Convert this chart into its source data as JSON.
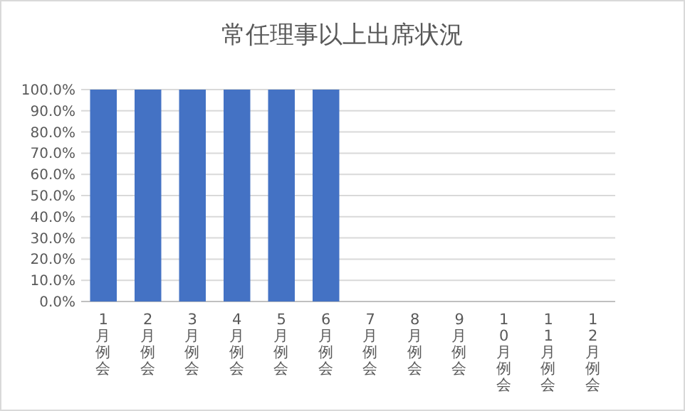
{
  "chart_data": {
    "type": "bar",
    "title": "常任理事以上出席状況",
    "categories": [
      "1月例会",
      "2月例会",
      "3月例会",
      "4月例会",
      "5月例会",
      "6月例会",
      "7月例会",
      "8月例会",
      "9月例会",
      "10月例会",
      "11月例会",
      "12月例会"
    ],
    "values": [
      100,
      100,
      100,
      100,
      100,
      100,
      null,
      null,
      null,
      null,
      null,
      null
    ],
    "color": "#4472c4",
    "ylim": [
      0,
      100
    ],
    "yticks": [
      {
        "value": 0,
        "label": "0.0%"
      },
      {
        "value": 10,
        "label": "10.0%"
      },
      {
        "value": 20,
        "label": "20.0%"
      },
      {
        "value": 30,
        "label": "30.0%"
      },
      {
        "value": 40,
        "label": "40.0%"
      },
      {
        "value": 50,
        "label": "50.0%"
      },
      {
        "value": 60,
        "label": "60.0%"
      },
      {
        "value": 70,
        "label": "70.0%"
      },
      {
        "value": 80,
        "label": "80.0%"
      },
      {
        "value": 90,
        "label": "90.0%"
      },
      {
        "value": 100,
        "label": "100.0%"
      }
    ],
    "grid": "y"
  }
}
